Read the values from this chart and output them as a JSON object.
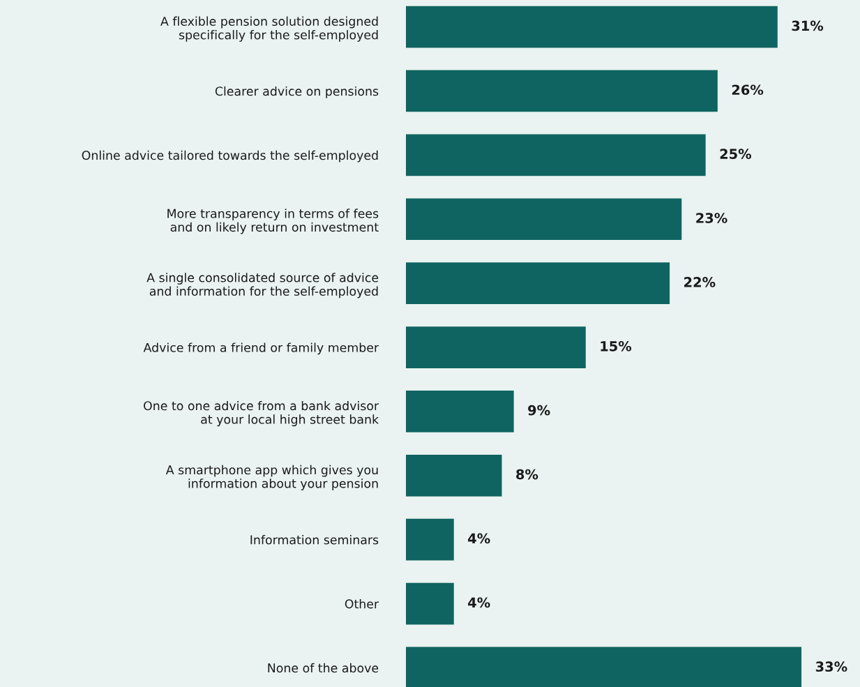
{
  "chart_data": {
    "type": "bar",
    "orientation": "horizontal",
    "categories": [
      "A flexible pension solution designed\nspecifically for the self-employed",
      "Clearer advice on pensions",
      "Online advice tailored towards the self-employed",
      "More transparency in terms of fees\nand on likely return on investment",
      "A single consolidated source of advice\nand information for the self-employed",
      "Advice from a friend or family member",
      "One to one advice from a bank advisor\nat your local high street bank",
      "A smartphone app which gives you\ninformation about your pension",
      "Information seminars",
      "Other",
      "None of the above"
    ],
    "values": [
      31,
      26,
      25,
      23,
      22,
      15,
      9,
      8,
      4,
      4,
      33
    ],
    "value_labels": [
      "31%",
      "26%",
      "25%",
      "23%",
      "22%",
      "15%",
      "9%",
      "8%",
      "4%",
      "4%",
      "33%"
    ],
    "color": "#0f6461",
    "grid": false,
    "legend": false,
    "tick_labels": "y"
  }
}
